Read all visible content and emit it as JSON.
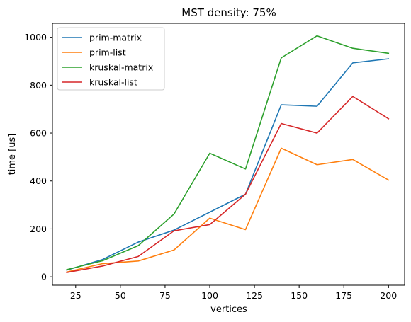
{
  "chart_data": {
    "type": "line",
    "title": "MST density: 75%",
    "xlabel": "vertices",
    "ylabel": "time [us]",
    "xlim": [
      12,
      209
    ],
    "ylim": [
      -35,
      1058
    ],
    "xticks": [
      25,
      50,
      75,
      100,
      125,
      150,
      175,
      200
    ],
    "yticks": [
      0,
      200,
      400,
      600,
      800,
      1000
    ],
    "grid": false,
    "legend_position": "upper-left",
    "x": [
      20,
      40,
      60,
      80,
      100,
      120,
      140,
      160,
      180,
      200
    ],
    "series": [
      {
        "name": "prim-matrix",
        "color": "#1f77b4",
        "values": [
          28,
          72,
          145,
          195,
          270,
          345,
          718,
          712,
          893,
          910
        ]
      },
      {
        "name": "prim-list",
        "color": "#ff7f0e",
        "values": [
          20,
          55,
          66,
          112,
          245,
          197,
          537,
          468,
          490,
          404
        ]
      },
      {
        "name": "kruskal-matrix",
        "color": "#2ca02c",
        "values": [
          30,
          67,
          130,
          262,
          516,
          450,
          914,
          1006,
          954,
          933
        ]
      },
      {
        "name": "kruskal-list",
        "color": "#d62728",
        "values": [
          18,
          45,
          85,
          192,
          218,
          345,
          640,
          600,
          753,
          660
        ]
      }
    ]
  }
}
